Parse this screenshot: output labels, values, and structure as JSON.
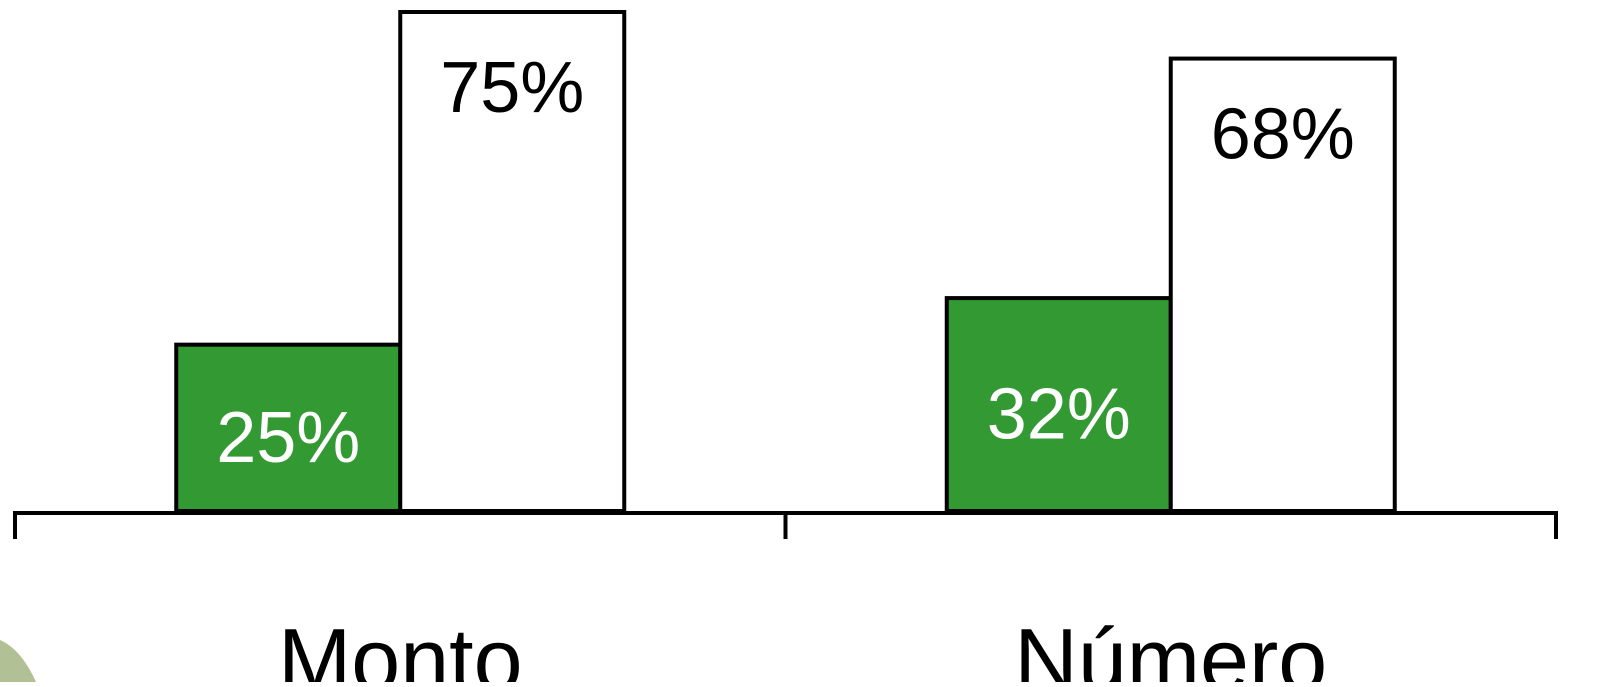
{
  "chart_data": {
    "type": "bar",
    "categories": [
      "Monto",
      "Número"
    ],
    "series": [
      {
        "values": [
          25,
          32
        ],
        "color": "#339933",
        "label_color": "#ffffff",
        "labels": [
          "25%",
          "32%"
        ]
      },
      {
        "values": [
          75,
          68
        ],
        "color": "#ffffff",
        "label_color": "#000000",
        "labels": [
          "75%",
          "68%"
        ]
      }
    ],
    "ylim": [
      0,
      75
    ],
    "grid": false,
    "legend": "none",
    "title": "",
    "xlabel": "",
    "ylabel": ""
  }
}
